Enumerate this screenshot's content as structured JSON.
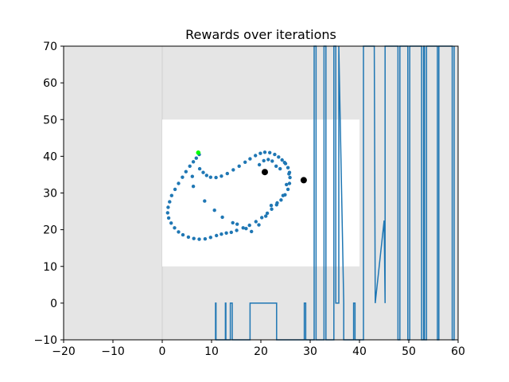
{
  "chart_data": {
    "type": "line",
    "title": "Rewards over iterations",
    "xlim": [
      -20,
      60
    ],
    "ylim": [
      -10,
      70
    ],
    "xticks": [
      -20,
      -10,
      0,
      10,
      20,
      30,
      40,
      50,
      60
    ],
    "yticks": [
      -10,
      0,
      10,
      20,
      30,
      40,
      50,
      60,
      70
    ],
    "xtick_labels": [
      "−20",
      "−10",
      "0",
      "10",
      "20",
      "30",
      "40",
      "50",
      "60"
    ],
    "ytick_labels": [
      "−10",
      "0",
      "10",
      "20",
      "30",
      "40",
      "50",
      "60",
      "70"
    ],
    "grid": false,
    "legend": "none",
    "regions": [
      {
        "role": "shaded-background",
        "x": [
          -20,
          60
        ],
        "y": [
          -10,
          70
        ],
        "color": "#e5e5e5"
      },
      {
        "role": "divider-line",
        "x": [
          0,
          0
        ],
        "y": [
          -10,
          70
        ],
        "color": "#d0d0d0"
      },
      {
        "role": "clear-area",
        "x": [
          0,
          40
        ],
        "y": [
          10,
          50
        ],
        "color": "#ffffff"
      }
    ],
    "series": [
      {
        "type": "line",
        "color": "#1f77b4",
        "x": [
          10.8,
          10.8,
          10.9,
          10.9,
          12.8,
          12.8,
          12.9,
          12.9,
          13.8,
          13.8,
          14.2,
          14.2,
          17.8,
          17.8,
          18.2,
          18.2,
          22.8,
          22.8,
          23.2,
          23.2,
          28.8,
          28.8,
          29.1,
          29.1,
          30.8,
          30.8,
          31.2,
          31.2,
          32.8,
          32.8,
          33.2,
          33.2,
          34.8,
          34.8,
          35.2,
          35.2,
          35.8,
          35.8,
          36.8,
          36.8,
          38.8,
          38.8,
          39.1,
          39.1,
          40.8,
          40.8,
          41.2,
          41.2,
          43,
          43.2,
          45,
          45.2,
          45.2,
          47.8,
          47.8,
          48.2,
          48.2,
          49.8,
          49.8,
          50.2,
          50.2,
          52.6,
          52.6,
          53,
          53,
          53.2,
          53.2,
          53.6,
          53.6,
          55.8,
          55.8,
          56.1,
          56.1,
          58.8,
          58.8,
          59.2,
          59.2
        ],
        "y": [
          -10,
          0,
          0,
          -10,
          -10,
          0,
          0,
          -10,
          -10,
          0,
          0,
          -10,
          -10,
          0,
          0,
          0,
          0,
          0,
          0,
          -10,
          -10,
          0,
          0,
          -10,
          -10,
          70,
          70,
          -10,
          -10,
          70,
          70,
          -10,
          -10,
          70,
          70,
          0,
          0,
          70,
          0,
          -10,
          -10,
          0,
          0,
          -10,
          -10,
          70,
          70,
          70,
          70,
          0,
          22.5,
          0,
          70,
          70,
          -10,
          -10,
          70,
          70,
          -10,
          -10,
          70,
          70,
          -10,
          -10,
          70,
          70,
          -10,
          -10,
          70,
          70,
          -10,
          -10,
          70,
          70,
          -10,
          -10,
          70
        ]
      },
      {
        "type": "scatter",
        "color": "#1f77b4",
        "x": [
          7.5,
          6.9,
          6.3,
          5.6,
          4.8,
          4.1,
          3.3,
          2.6,
          1.9,
          1.5,
          1.2,
          1.1,
          1.3,
          1.8,
          2.5,
          3.3,
          4.2,
          5.3,
          6.4,
          7.5,
          8.7,
          9.8,
          11,
          12,
          13,
          14,
          15.1,
          16.4,
          17.7,
          19,
          20.2,
          21.3,
          22.2,
          23.2,
          24.1,
          24.9,
          25.5,
          25.8,
          25.9,
          25.8,
          25.5,
          25,
          24.3,
          23.6,
          22.8,
          21.8,
          20.8,
          19.9,
          18.9,
          17.8,
          16.8,
          15.6,
          14.4,
          13.2,
          12,
          10.9,
          9.8,
          9,
          8.3,
          7.6,
          6.1,
          6.3,
          8.6,
          10.6,
          12.2,
          14.3,
          15.2,
          17,
          18.1,
          19.6,
          21,
          22.1,
          23.3,
          24.5,
          25.2,
          25.7,
          24.8,
          23.9,
          23.1,
          22.3,
          21.5,
          20.6,
          19.7
        ],
        "y": [
          40.5,
          39.5,
          38.5,
          37.3,
          35.8,
          34.3,
          32.6,
          31,
          29.3,
          27.6,
          26.1,
          24.6,
          23.2,
          21.8,
          20.5,
          19.4,
          18.6,
          18,
          17.6,
          17.4,
          17.5,
          17.9,
          18.4,
          18.8,
          19.1,
          19.3,
          19.8,
          20.5,
          21.2,
          22.2,
          23.3,
          24.5,
          25.6,
          26.8,
          28.1,
          29.5,
          31,
          32.6,
          34.2,
          35.6,
          36.9,
          38,
          39,
          39.8,
          40.5,
          41,
          41.1,
          40.8,
          40.2,
          39.3,
          38.4,
          37.3,
          36.3,
          35.3,
          34.6,
          34.2,
          34.3,
          34.8,
          35.6,
          36.6,
          34.5,
          31.8,
          27.8,
          25.3,
          23.4,
          21.9,
          21.5,
          20.3,
          19.5,
          21.3,
          23.7,
          26.6,
          27.3,
          29.3,
          32.3,
          35.2,
          38.3,
          36.6,
          37.3,
          38.7,
          39.1,
          38.8,
          37.7
        ]
      },
      {
        "type": "scatter",
        "role": "key-points",
        "color": "#000000",
        "x": [
          20.8,
          28.7
        ],
        "y": [
          35.7,
          33.5
        ]
      },
      {
        "type": "scatter",
        "role": "highlight-point",
        "color": "#00ff00",
        "x": [
          7.3
        ],
        "y": [
          41.0
        ]
      }
    ]
  }
}
